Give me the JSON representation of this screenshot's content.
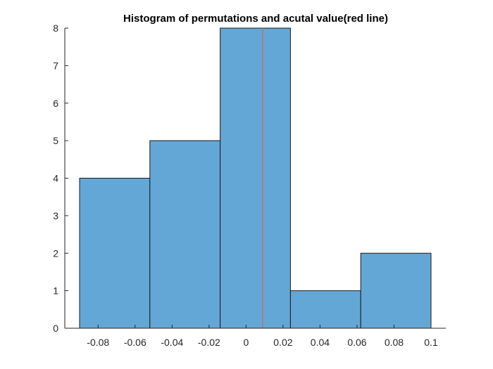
{
  "chart_data": {
    "type": "bar",
    "title": "Histogram of permutations and acutal value(red line)",
    "xlabel": "",
    "ylabel": "",
    "bins": [
      {
        "start": -0.09,
        "end": -0.052,
        "count": 4
      },
      {
        "start": -0.052,
        "end": -0.014,
        "count": 5
      },
      {
        "start": -0.014,
        "end": 0.024,
        "count": 8
      },
      {
        "start": 0.024,
        "end": 0.062,
        "count": 1
      },
      {
        "start": 0.062,
        "end": 0.1,
        "count": 2
      }
    ],
    "actual_value": 0.009,
    "xlim": [
      -0.098,
      0.108
    ],
    "ylim": [
      0,
      8
    ],
    "xticks": [
      -0.08,
      -0.06,
      -0.04,
      -0.02,
      0,
      0.02,
      0.04,
      0.06,
      0.08,
      0.1
    ],
    "xtick_labels": [
      "-0.08",
      "-0.06",
      "-0.04",
      "-0.02",
      "0",
      "0.02",
      "0.04",
      "0.06",
      "0.08",
      "0.1"
    ],
    "yticks": [
      0,
      1,
      2,
      3,
      4,
      5,
      6,
      7,
      8
    ],
    "ytick_labels": [
      "0",
      "1",
      "2",
      "3",
      "4",
      "5",
      "6",
      "7",
      "8"
    ],
    "grid": false,
    "colors": {
      "bar_fill": "#63a7d6",
      "bar_edge": "#1a1a1a",
      "actual_line": "#d9643a",
      "axis": "#262626"
    }
  }
}
